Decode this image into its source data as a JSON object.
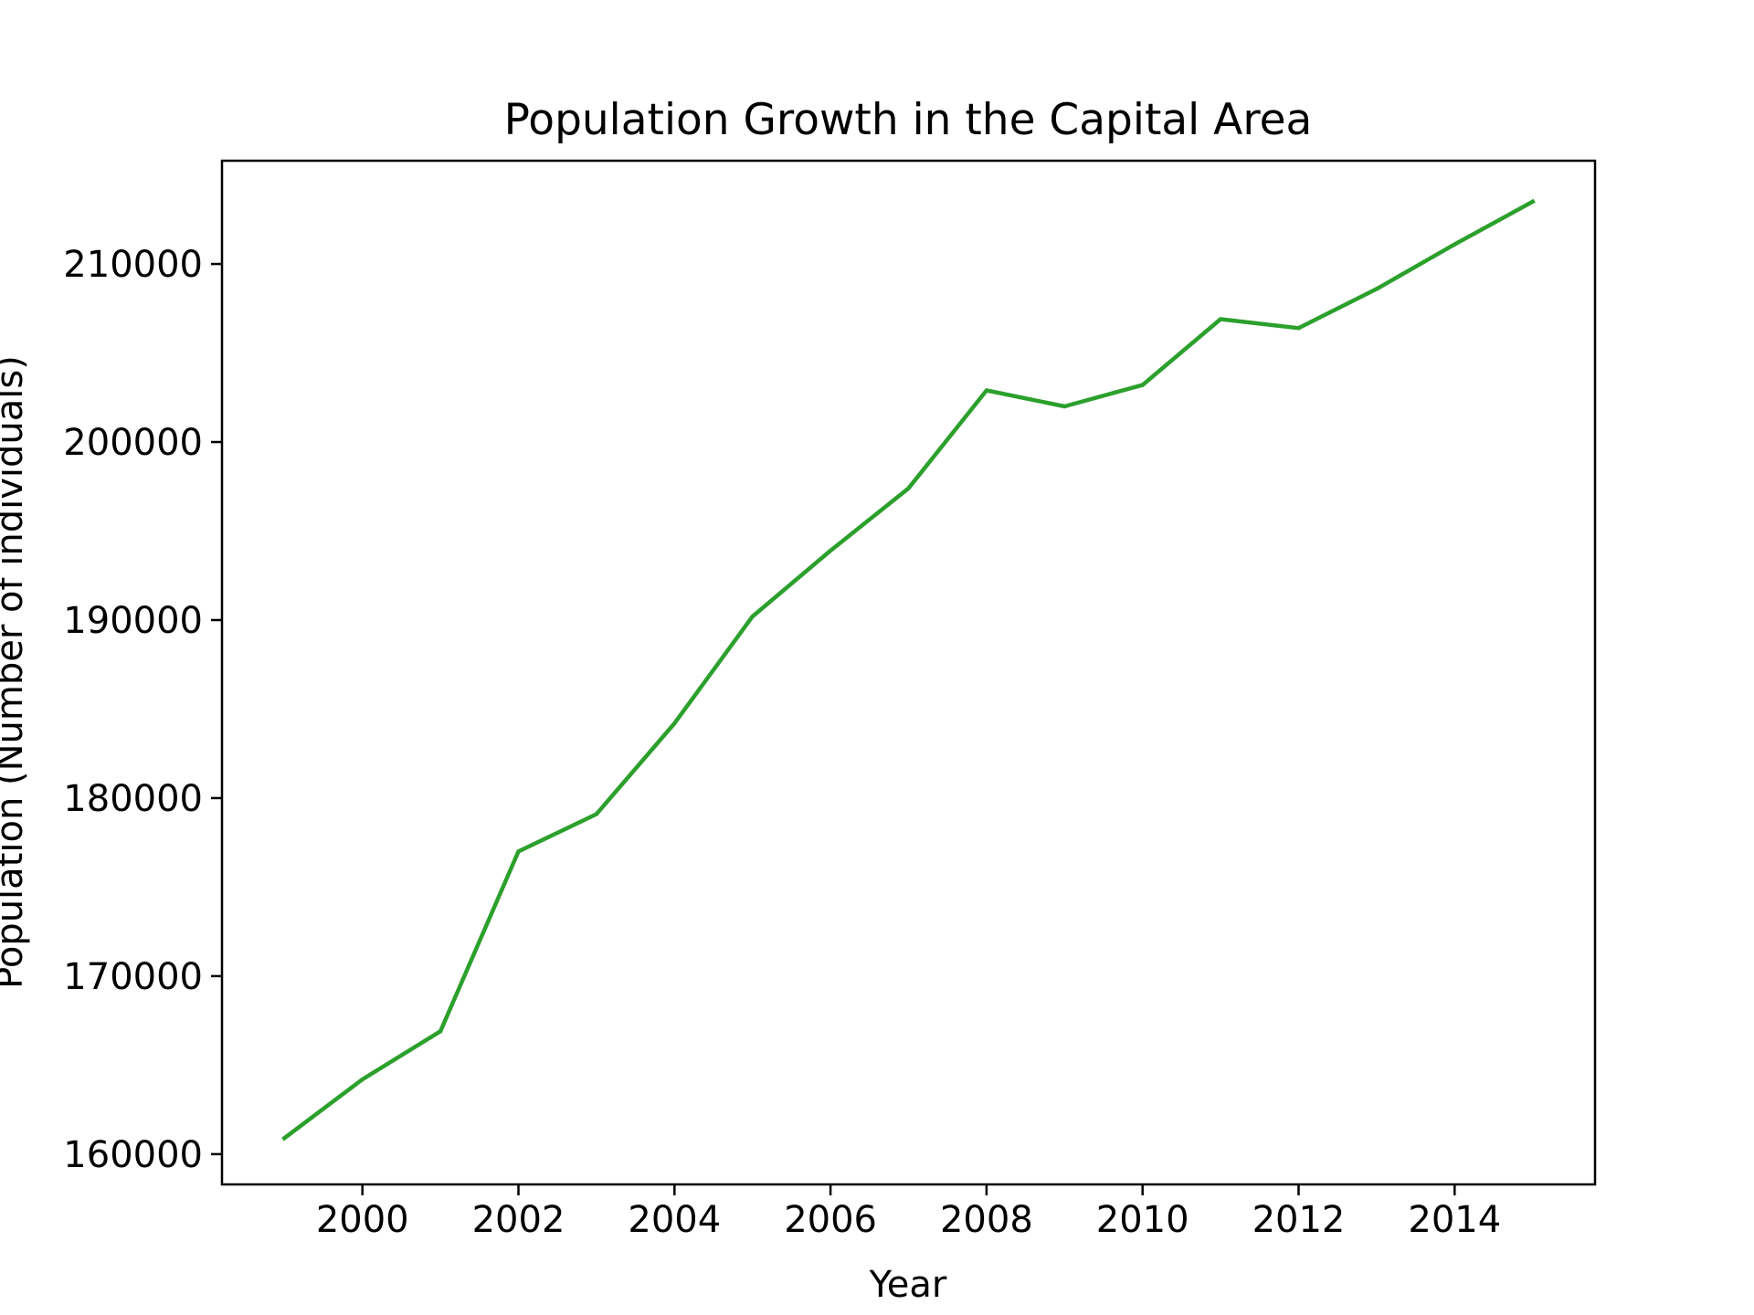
{
  "chart_data": {
    "type": "line",
    "title": "Population Growth in the Capital Area",
    "xlabel": "Year",
    "ylabel": "Population (Number of individuals)",
    "xlim": [
      1998.2,
      2015.8
    ],
    "ylim": [
      158300,
      215800
    ],
    "x_ticks": [
      2000,
      2002,
      2004,
      2006,
      2008,
      2010,
      2012,
      2014
    ],
    "y_ticks": [
      160000,
      170000,
      180000,
      190000,
      200000,
      210000
    ],
    "grid": false,
    "line_color": "#2ca02c",
    "x": [
      1999,
      2000,
      2001,
      2002,
      2003,
      2004,
      2005,
      2006,
      2007,
      2008,
      2009,
      2010,
      2011,
      2012,
      2013,
      2014,
      2015
    ],
    "series": [
      {
        "values": [
          160900,
          164200,
          166900,
          177000,
          179100,
          184200,
          190200,
          193900,
          197400,
          202900,
          202000,
          203200,
          206900,
          206400,
          208600,
          211100,
          213500
        ]
      }
    ]
  }
}
